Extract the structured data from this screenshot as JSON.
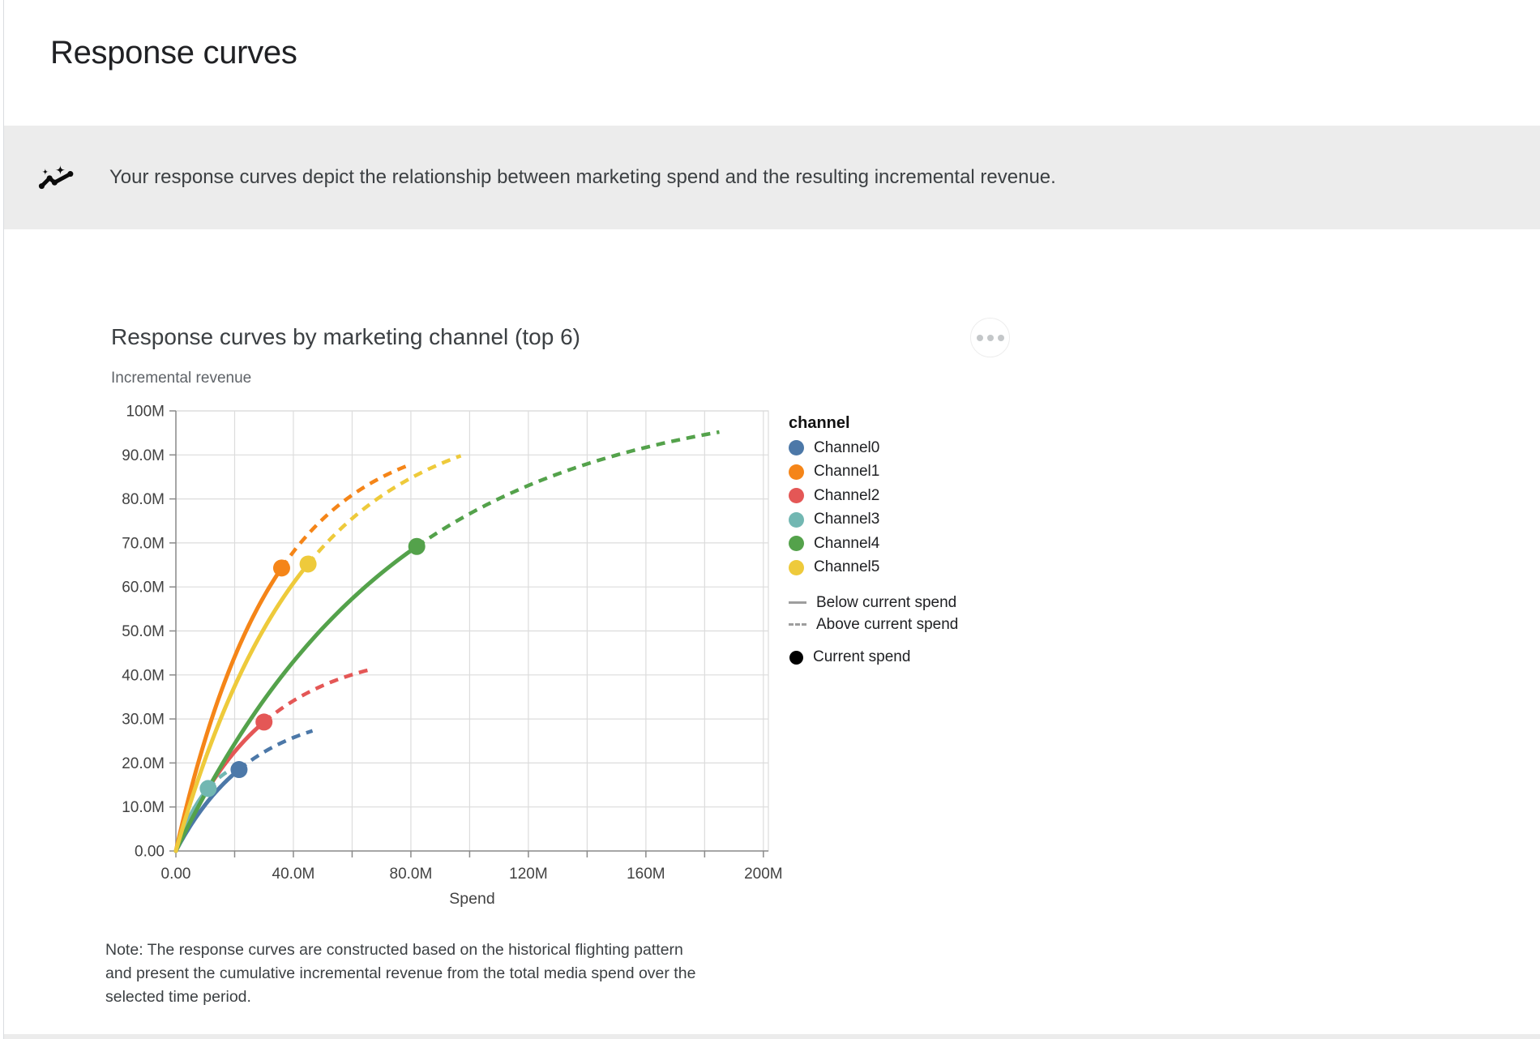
{
  "page": {
    "title": "Response curves"
  },
  "insight": {
    "icon": "insights-sparkline-icon",
    "text": "Your response curves depict the relationship between marketing spend and the resulting incremental revenue."
  },
  "card": {
    "title": "Response curves by marketing channel (top 6)",
    "subtitle": "Incremental revenue",
    "menu_icon": "more-options-icon",
    "note_lines": [
      "Note: The response curves are constructed based on the historical flighting pattern",
      "and present the cumulative incremental revenue from the total media spend over the",
      "selected time period."
    ]
  },
  "chart_data": {
    "type": "line",
    "title": "Response curves by marketing channel (top 6)",
    "xlabel": "Spend",
    "ylabel": "Incremental revenue",
    "units": "values in millions",
    "xlim": [
      0,
      201.7
    ],
    "ylim": [
      0,
      100
    ],
    "x_ticks": [
      "0.00",
      "40.0M",
      "80.0M",
      "120M",
      "160M",
      "200M"
    ],
    "x_tick_values": [
      0,
      40,
      80,
      120,
      160,
      200
    ],
    "x_grid_step_m": 20,
    "y_ticks": [
      "0.00",
      "10.0M",
      "20.0M",
      "30.0M",
      "40.0M",
      "50.0M",
      "60.0M",
      "70.0M",
      "80.0M",
      "90.0M",
      "100M"
    ],
    "y_tick_values": [
      0,
      10,
      20,
      30,
      40,
      50,
      60,
      70,
      80,
      90,
      100
    ],
    "y_grid_step_m": 10,
    "grid": true,
    "legend": {
      "position": "right",
      "title": "channel",
      "line_styles": [
        {
          "label": "Below current spend",
          "style": "solid"
        },
        {
          "label": "Above current spend",
          "style": "dashed"
        }
      ],
      "point": {
        "label": "Current spend",
        "color": "#000000"
      }
    },
    "series": [
      {
        "name": "Channel0",
        "color": "#4c78a8",
        "current_spend_m": 21.5,
        "current_revenue_m": 18.5,
        "end_spend_m": 46.5,
        "end_revenue_m": 27.3
      },
      {
        "name": "Channel1",
        "color": "#f58518",
        "current_spend_m": 36,
        "current_revenue_m": 64.3,
        "end_spend_m": 79,
        "end_revenue_m": 87.6
      },
      {
        "name": "Channel2",
        "color": "#e45756",
        "current_spend_m": 30,
        "current_revenue_m": 29.3,
        "end_spend_m": 66,
        "end_revenue_m": 41.2
      },
      {
        "name": "Channel3",
        "color": "#72b7b2",
        "current_spend_m": 11,
        "current_revenue_m": 14.2,
        "end_spend_m": 20,
        "end_revenue_m": 19.0
      },
      {
        "name": "Channel4",
        "color": "#54a24b",
        "current_spend_m": 82,
        "current_revenue_m": 69.2,
        "end_spend_m": 185,
        "end_revenue_m": 95.2
      },
      {
        "name": "Channel5",
        "color": "#eeca3b",
        "current_spend_m": 45,
        "current_revenue_m": 65.2,
        "end_spend_m": 97,
        "end_revenue_m": 89.8
      }
    ]
  },
  "colors": {
    "insight_bar_bg": "#ececec",
    "grid": "#dcdcdc",
    "axis": "#8a8a8a",
    "tick_label": "#424242",
    "legend_line_swatch": "#9e9e9e"
  }
}
